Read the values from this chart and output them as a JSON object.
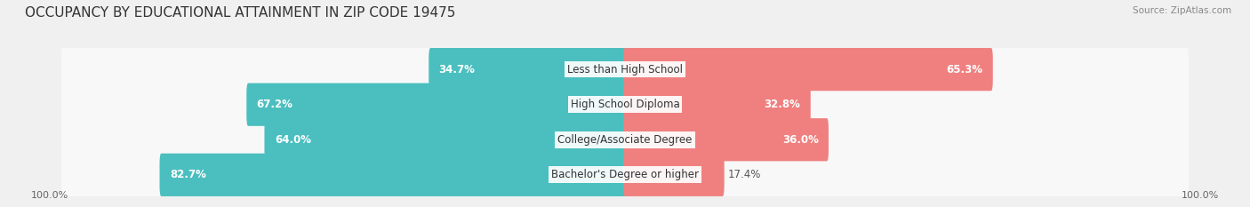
{
  "title": "OCCUPANCY BY EDUCATIONAL ATTAINMENT IN ZIP CODE 19475",
  "source": "Source: ZipAtlas.com",
  "categories": [
    "Less than High School",
    "High School Diploma",
    "College/Associate Degree",
    "Bachelor's Degree or higher"
  ],
  "owner_pct": [
    34.7,
    67.2,
    64.0,
    82.7
  ],
  "renter_pct": [
    65.3,
    32.8,
    36.0,
    17.4
  ],
  "owner_color": "#4bbfbf",
  "renter_color": "#f08080",
  "bg_color": "#f0f0f0",
  "row_bg_color": "#f8f8f8",
  "title_fontsize": 11,
  "label_fontsize": 8.5,
  "tick_fontsize": 8,
  "bar_height": 0.62,
  "x_left_label": "100.0%",
  "x_right_label": "100.0%"
}
